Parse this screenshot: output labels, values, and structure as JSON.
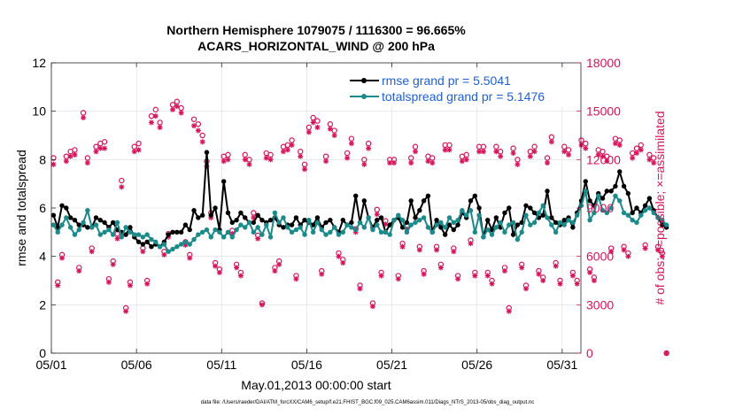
{
  "colors": {
    "rmse": "#000000",
    "totalspread": "#1a8a8a",
    "obs": "#d6135a",
    "legend_text": "#1f5fd8",
    "right_axis": "#d6135a"
  },
  "chart_data": {
    "type": "line",
    "title": "Northern Hemisphere 1079075 / 1116300 = 96.665%",
    "subtitle": "ACARS_HORIZONTAL_WIND @ 200 hPa",
    "xlabel": "May.01,2013 00:00:00 start",
    "ylabel": "rmse and totalspread",
    "y2label": "# of obs: o=possible; ×=assimilated",
    "footnote": "data file: /Users/raeder/DAI/ATM_forcXX/CAM6_setup/f.e21.FHIST_BGC.f09_025.CAM6assim.011/Diags_NTrS_2013-05/obs_diag_output.nc",
    "xlim": [
      1,
      32.1
    ],
    "xticks": [
      1,
      6,
      11,
      16,
      21,
      26,
      31
    ],
    "xtick_labels": [
      "05/01",
      "05/06",
      "05/11",
      "05/16",
      "05/21",
      "05/26",
      "05/31"
    ],
    "ylim": [
      0,
      12
    ],
    "yticks": [
      0,
      2,
      4,
      6,
      8,
      10,
      12
    ],
    "y2lim": [
      0,
      18000
    ],
    "y2ticks": [
      0,
      3000,
      6000,
      9000,
      12000,
      15000,
      18000
    ],
    "grid": true,
    "legend_position": "top-right",
    "series": [
      {
        "name": "rmse grand pr = 5.5041",
        "axis": "left",
        "x_start": 1.125,
        "x_step": 0.25,
        "values": [
          5.7,
          5.2,
          6.1,
          6.0,
          5.6,
          5.5,
          5.3,
          5.3,
          5.2,
          5.2,
          5.6,
          5.5,
          5.4,
          5.2,
          5.4,
          5.1,
          5.0,
          4.9,
          5.2,
          4.8,
          4.6,
          4.5,
          4.6,
          4.4,
          4.5,
          4.4,
          4.6,
          4.9,
          5.0,
          5.0,
          5.0,
          5.3,
          5.1,
          5.9,
          5.6,
          5.7,
          8.3,
          5.7,
          6.0,
          5.1,
          7.1,
          5.8,
          5.4,
          5.5,
          5.8,
          5.6,
          5.4,
          5.4,
          5.7,
          5.5,
          5.4,
          5.5,
          5.6,
          5.3,
          5.2,
          5.3,
          5.3,
          5.6,
          5.3,
          5.5,
          5.4,
          5.3,
          5.6,
          5.2,
          5.4,
          5.5,
          5.2,
          5.0,
          5.5,
          5.3,
          5.4,
          6.5,
          5.4,
          6.3,
          5.6,
          5.2,
          5.5,
          5.6,
          5.0,
          5.3,
          5.5,
          5.6,
          5.2,
          5.4,
          6.3,
          5.6,
          5.9,
          6.3,
          6.5,
          5.0,
          5.5,
          5.2,
          4.9,
          5.3,
          5.1,
          5.3,
          5.8,
          5.6,
          6.3,
          6.5,
          6.0,
          4.8,
          5.5,
          5.1,
          5.6,
          5.2,
          5.8,
          6.0,
          4.9,
          5.3,
          5.4,
          6.1,
          6.0,
          5.8,
          5.6,
          5.7,
          6.7,
          5.6,
          5.4,
          5.3,
          5.5,
          5.6,
          5.2,
          5.8,
          6.3,
          7.1,
          6.3,
          6.1,
          6.6,
          6.4,
          6.7,
          6.7,
          6.9,
          7.5,
          6.9,
          6.6,
          5.8,
          6.0,
          5.8,
          6.1,
          6.4,
          5.9,
          5.6,
          5.3,
          5.2
        ]
      },
      {
        "name": "totalspread grand pr = 5.1476",
        "axis": "left",
        "x_start": 1.125,
        "x_step": 0.25,
        "values": [
          5.3,
          5.0,
          5.3,
          5.6,
          5.2,
          4.9,
          5.1,
          5.4,
          5.9,
          5.2,
          5.3,
          4.9,
          5.0,
          5.1,
          4.9,
          5.4,
          4.8,
          5.2,
          5.0,
          4.9,
          4.9,
          4.8,
          4.9,
          4.7,
          4.6,
          4.4,
          4.5,
          4.2,
          4.3,
          4.4,
          4.5,
          4.6,
          4.5,
          4.7,
          4.9,
          5.0,
          5.1,
          4.8,
          5.1,
          5.0,
          4.8,
          5.0,
          4.8,
          5.1,
          5.3,
          5.2,
          5.4,
          5.0,
          5.2,
          4.9,
          5.3,
          4.8,
          5.8,
          5.4,
          5.6,
          5.2,
          5.0,
          5.1,
          5.2,
          4.9,
          5.5,
          5.0,
          5.4,
          5.1,
          4.9,
          5.0,
          5.2,
          4.9,
          5.0,
          5.3,
          5.2,
          5.1,
          5.4,
          5.2,
          5.6,
          5.1,
          5.3,
          5.0,
          5.0,
          4.9,
          5.5,
          5.7,
          5.5,
          5.0,
          5.3,
          5.4,
          5.5,
          5.6,
          5.2,
          5.0,
          5.3,
          5.4,
          5.2,
          5.6,
          5.4,
          5.5,
          5.9,
          5.7,
          5.9,
          5.0,
          5.7,
          4.8,
          5.1,
          4.9,
          5.2,
          5.4,
          5.0,
          5.3,
          5.4,
          4.7,
          5.0,
          5.7,
          5.3,
          5.4,
          5.8,
          6.1,
          5.6,
          5.3,
          5.0,
          5.4,
          5.3,
          5.5,
          5.4,
          5.7,
          6.1,
          6.7,
          5.5,
          5.8,
          6.5,
          5.9,
          5.8,
          6.0,
          6.5,
          6.3,
          5.8,
          5.7,
          5.5,
          5.4,
          5.7,
          5.9,
          6.0,
          5.8,
          5.6,
          5.5,
          5.3
        ]
      },
      {
        "name": "possible",
        "axis": "right",
        "marker": "circle",
        "x_start": 1.125,
        "x_step": 0.25,
        "values": [
          12100,
          4400,
          6100,
          12200,
          12500,
          12600,
          5300,
          14900,
          12100,
          6500,
          12800,
          13000,
          13100,
          4600,
          5700,
          7400,
          10700,
          2800,
          4400,
          12800,
          13000,
          6500,
          4500,
          14700,
          15100,
          14300,
          6300,
          7400,
          15400,
          15600,
          15200,
          6900,
          6100,
          14500,
          14200,
          13500,
          11900,
          8700,
          5600,
          5200,
          12200,
          12300,
          7600,
          5500,
          5000,
          12300,
          12000,
          8700,
          7300,
          3100,
          12400,
          12300,
          5300,
          5700,
          12800,
          12900,
          13200,
          4800,
          12500,
          11700,
          14000,
          14600,
          14400,
          5100,
          12200,
          14200,
          13800,
          6200,
          5800,
          12400,
          13300,
          7700,
          4200,
          12000,
          13000,
          3100,
          8900,
          5000,
          8200,
          12000,
          12000,
          4800,
          6800,
          7900,
          12100,
          12800,
          6600,
          5100,
          12200,
          12100,
          6600,
          5500,
          12900,
          12900,
          6500,
          4800,
          12200,
          12300,
          7000,
          5000,
          12800,
          12800,
          5000,
          4500,
          12800,
          12500,
          5300,
          2800,
          12700,
          12000,
          5500,
          4200,
          12500,
          12800,
          5100,
          4700,
          12100,
          13400,
          5600,
          4500,
          12800,
          12600,
          5000,
          4500,
          13200,
          13000,
          5200,
          4700,
          12600,
          12500,
          12200,
          6500,
          13300,
          13200,
          6600,
          6200,
          12400,
          12700,
          12900,
          6700,
          12300,
          12100,
          6600,
          6200,
          0
        ]
      },
      {
        "name": "assimilated",
        "axis": "right",
        "marker": "asterisk",
        "x_start": 1.125,
        "x_step": 0.25,
        "values": [
          11700,
          4200,
          5900,
          11900,
          12200,
          12300,
          5100,
          14600,
          11800,
          6300,
          12500,
          12700,
          12700,
          4400,
          5500,
          7100,
          10300,
          2600,
          4200,
          12500,
          12600,
          6300,
          4300,
          14300,
          14700,
          14000,
          6100,
          7200,
          15100,
          15300,
          14900,
          6700,
          5900,
          14100,
          13800,
          13100,
          11600,
          8400,
          5400,
          5000,
          11900,
          12000,
          7400,
          5300,
          4800,
          12000,
          11700,
          8400,
          7100,
          3000,
          12100,
          12000,
          5100,
          5500,
          12500,
          12600,
          12900,
          4600,
          12200,
          11400,
          13700,
          14300,
          14000,
          4900,
          11900,
          13900,
          13500,
          6000,
          5600,
          12100,
          13000,
          7500,
          4000,
          11700,
          12700,
          2900,
          8600,
          4800,
          8000,
          11800,
          11800,
          4600,
          6600,
          7700,
          11800,
          12500,
          6400,
          4900,
          11900,
          11800,
          6400,
          5300,
          12600,
          12600,
          6300,
          4600,
          11900,
          12000,
          6800,
          4800,
          12500,
          12500,
          4800,
          4300,
          12500,
          12200,
          5100,
          2600,
          12400,
          11700,
          5300,
          4000,
          12200,
          12500,
          4900,
          4500,
          11800,
          13100,
          5400,
          4300,
          12500,
          12300,
          4800,
          4300,
          12900,
          12700,
          5000,
          4500,
          12300,
          12200,
          11900,
          6300,
          13000,
          12900,
          6400,
          6000,
          12100,
          12400,
          12600,
          6500,
          12000,
          11800,
          6400,
          6000,
          0
        ]
      }
    ]
  }
}
